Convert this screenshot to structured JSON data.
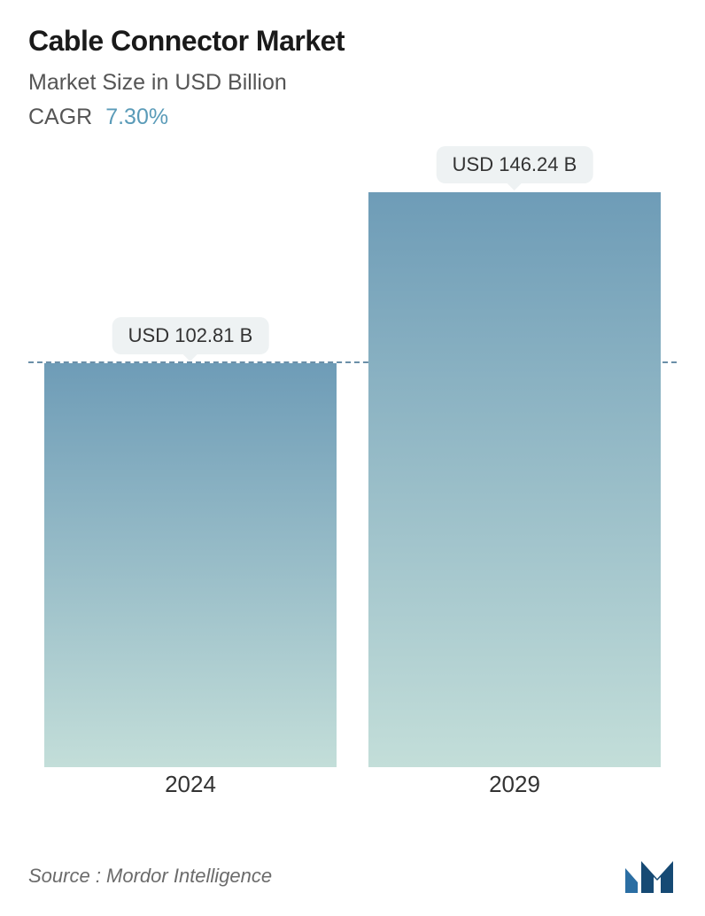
{
  "header": {
    "title": "Cable Connector Market",
    "subtitle": "Market Size in USD Billion",
    "cagr_label": "CAGR",
    "cagr_value": "7.30%",
    "title_color": "#1a1a1a",
    "subtitle_color": "#555555",
    "cagr_value_color": "#5a9bb8",
    "title_fontsize": 32,
    "subtitle_fontsize": 25
  },
  "chart": {
    "type": "bar",
    "background_color": "#ffffff",
    "ylim": [
      0,
      150
    ],
    "reference_line_value": 102.81,
    "reference_line_color": "#6a8fa8",
    "reference_line_dash": "6 6",
    "bar_width_pct": 45,
    "bar_gradient_top": "#6e9cb7",
    "bar_gradient_bottom": "#c3ded9",
    "value_badge_bg": "#eef2f3",
    "value_badge_text_color": "#333333",
    "value_badge_fontsize": 22,
    "xlabel_fontsize": 26,
    "xlabel_color": "#333333",
    "bars": [
      {
        "category": "2024",
        "value": 102.81,
        "display": "USD 102.81 B"
      },
      {
        "category": "2029",
        "value": 146.24,
        "display": "USD 146.24 B"
      }
    ]
  },
  "footer": {
    "source_text": "Source :  Mordor Intelligence",
    "source_color": "#6b6b6b",
    "source_fontsize": 22,
    "logo_colors": {
      "left": "#2b6ea3",
      "right": "#164a74"
    }
  }
}
